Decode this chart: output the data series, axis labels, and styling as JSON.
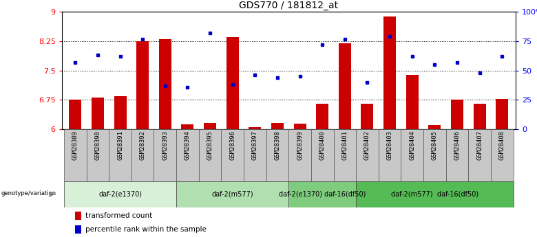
{
  "title": "GDS770 / 181812_at",
  "samples": [
    "GSM28389",
    "GSM28390",
    "GSM28391",
    "GSM28392",
    "GSM28393",
    "GSM28394",
    "GSM28395",
    "GSM28396",
    "GSM28397",
    "GSM28398",
    "GSM28399",
    "GSM28400",
    "GSM28401",
    "GSM28402",
    "GSM28403",
    "GSM28404",
    "GSM28405",
    "GSM28406",
    "GSM28407",
    "GSM28408"
  ],
  "bar_values": [
    6.75,
    6.8,
    6.84,
    8.25,
    8.3,
    6.13,
    6.15,
    8.35,
    6.05,
    6.15,
    6.14,
    6.65,
    8.2,
    6.65,
    8.88,
    7.38,
    6.1,
    6.75,
    6.65,
    6.78
  ],
  "dot_pct": [
    57,
    63,
    62,
    77,
    37,
    36,
    82,
    38,
    46,
    44,
    45,
    72,
    77,
    40,
    79,
    62,
    55,
    57,
    48,
    62
  ],
  "ymin": 6.0,
  "ymax": 9.0,
  "yticks": [
    6.0,
    6.75,
    7.5,
    8.25,
    9.0
  ],
  "ytick_labels": [
    "6",
    "6.75",
    "7.5",
    "8.25",
    "9"
  ],
  "y2ticks": [
    0,
    25,
    50,
    75,
    100
  ],
  "y2tick_labels": [
    "0",
    "25",
    "50",
    "75",
    "100%"
  ],
  "bar_color": "#cc0000",
  "dot_color": "#0000cc",
  "bar_bottom": 6.0,
  "group_data": [
    {
      "start": 0,
      "end": 4,
      "label": "daf-2(e1370)",
      "color": "#d8f0d8"
    },
    {
      "start": 5,
      "end": 9,
      "label": "daf-2(m577)",
      "color": "#b0dfb0"
    },
    {
      "start": 10,
      "end": 12,
      "label": "daf-2(e1370) daf-16(df50)",
      "color": "#7fcc7f"
    },
    {
      "start": 13,
      "end": 19,
      "label": "daf-2(m577)  daf-16(df50)",
      "color": "#55bb55"
    }
  ],
  "sample_cell_color": "#c8c8c8",
  "sample_cell_edge": "#555555",
  "genotype_label": "genotype/variation",
  "legend_bar_text": "transformed count",
  "legend_dot_text": "percentile rank within the sample",
  "title_fontsize": 10,
  "tick_fontsize": 6.5,
  "axis_fontsize": 8,
  "group_fontsize": 7
}
